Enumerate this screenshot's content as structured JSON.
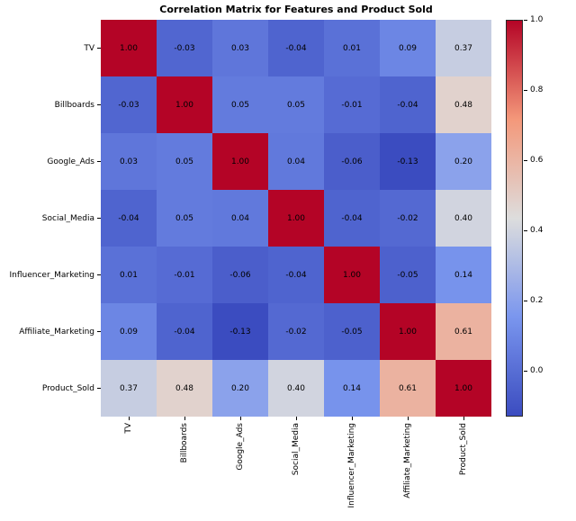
{
  "title": "Correlation Matrix for Features and Product Sold",
  "chart_data": {
    "type": "heatmap",
    "title": "Correlation Matrix for Features and Product Sold",
    "categories": [
      "TV",
      "Billboards",
      "Google_Ads",
      "Social_Media",
      "Influencer_Marketing",
      "Affiliate_Marketing",
      "Product_Sold"
    ],
    "matrix": [
      [
        1.0,
        -0.03,
        0.03,
        -0.04,
        0.01,
        0.09,
        0.37
      ],
      [
        -0.03,
        1.0,
        0.05,
        0.05,
        -0.01,
        -0.04,
        0.48
      ],
      [
        0.03,
        0.05,
        1.0,
        0.04,
        -0.06,
        -0.13,
        0.2
      ],
      [
        -0.04,
        0.05,
        0.04,
        1.0,
        -0.04,
        -0.02,
        0.4
      ],
      [
        0.01,
        -0.01,
        -0.06,
        -0.04,
        1.0,
        -0.05,
        0.14
      ],
      [
        0.09,
        -0.04,
        -0.13,
        -0.02,
        -0.05,
        1.0,
        0.61
      ],
      [
        0.37,
        0.48,
        0.2,
        0.4,
        0.14,
        0.61,
        1.0
      ]
    ],
    "annotations_decimals": 2,
    "colormap": "coolwarm",
    "vmin": -0.13,
    "vmax": 1.0,
    "colorbar": {
      "position": "right",
      "tick_labels": [
        "1.0",
        "0.8",
        "0.6",
        "0.4",
        "0.2",
        "0.0"
      ],
      "tick_values": [
        1.0,
        0.8,
        0.6,
        0.4,
        0.2,
        0.0
      ]
    },
    "colors": {
      "low": "#3b4cc0",
      "mid": "#dddddd",
      "high": "#b40426",
      "annotation_text": "#000000",
      "background": "#ffffff"
    }
  }
}
